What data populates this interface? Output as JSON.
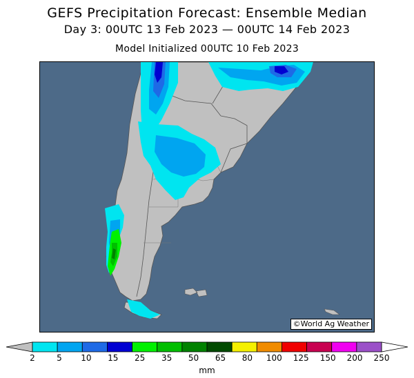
{
  "header": {
    "title": "GEFS Precipitation Forecast: Ensemble Median",
    "valid": "Day 3: 00UTC 13 Feb 2023 — 00UTC 14 Feb 2023",
    "init": "Model Initialized 00UTC 10 Feb 2023"
  },
  "map": {
    "credit": "©World Ag Weather",
    "ocean_color": "#4d6a88",
    "land_color": "#c0c0c0",
    "border_color": "#555555"
  },
  "colorbar": {
    "units": "mm",
    "ticks": [
      "2",
      "5",
      "10",
      "15",
      "25",
      "35",
      "50",
      "65",
      "80",
      "100",
      "125",
      "150",
      "200",
      "250"
    ],
    "colors": [
      "#00e5f0",
      "#00a5f0",
      "#1e6ae6",
      "#0000d2",
      "#00f000",
      "#00be00",
      "#008200",
      "#004a00",
      "#f5f000",
      "#f08c00",
      "#f00000",
      "#c80050",
      "#f000f0",
      "#9b50c8"
    ],
    "under_color": "#c0c0c0",
    "over_color": "#ffffff"
  }
}
